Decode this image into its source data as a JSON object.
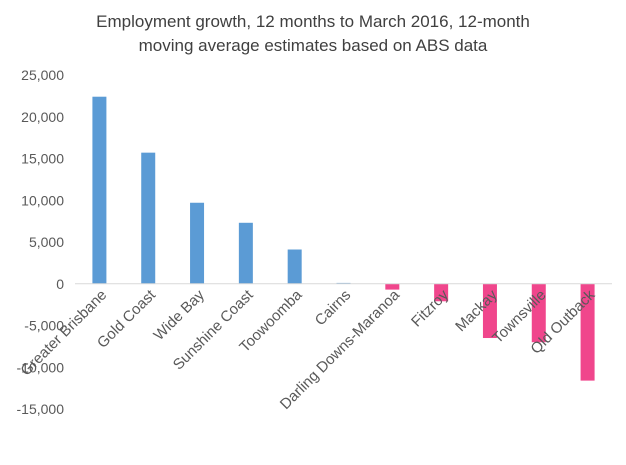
{
  "chart_data": {
    "type": "bar",
    "title_lines": [
      "Employment growth, 12 months to March 2016, 12-month",
      "moving average estimates based on ABS data"
    ],
    "categories": [
      "Greater Brisbane",
      "Gold Coast",
      "Wide Bay",
      "Sunshine Coast",
      "Toowoomba",
      "Cairns",
      "Darling Downs-Maranoa",
      "Fitzroy",
      "Mackay",
      "Townsville",
      "Qld Outback"
    ],
    "values": [
      22400,
      15700,
      9700,
      7300,
      4100,
      100,
      -700,
      -2100,
      -6500,
      -7000,
      -11600
    ],
    "ylim": [
      -15000,
      25000
    ],
    "yticks": [
      -15000,
      -10000,
      -5000,
      0,
      5000,
      10000,
      15000,
      20000,
      25000
    ],
    "ytick_labels": [
      "-15,000",
      "-10,000",
      "-5,000",
      "0",
      "5,000",
      "10,000",
      "15,000",
      "20,000",
      "25,000"
    ],
    "colors": {
      "positive": "#5B9BD5",
      "negative": "#F0468C",
      "axis": "#D9D9D9",
      "text": "#595959"
    },
    "grid": false,
    "legend": "none"
  }
}
